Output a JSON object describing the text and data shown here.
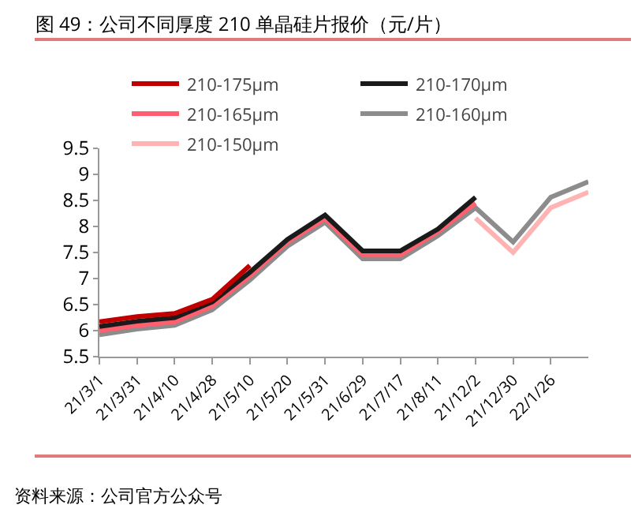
{
  "chart_data": {
    "type": "line",
    "title": "图 49：公司不同厚度 210 单晶硅片报价（元/片）",
    "annotations": [
      "资料来源：公司官方公众号"
    ],
    "categories": [
      "21/3/1",
      "21/3/31",
      "21/4/10",
      "21/4/28",
      "21/5/10",
      "21/5/20",
      "21/5/31",
      "21/6/29",
      "21/7/17",
      "21/8/11",
      "21/12/2",
      "21/12/30",
      "22/1/26",
      null
    ],
    "series": [
      {
        "name": "210-175μm",
        "color": "#c00000",
        "values": [
          6.17,
          6.27,
          6.33,
          6.6,
          7.25,
          null,
          null,
          null,
          null,
          null,
          null,
          null,
          null,
          null
        ]
      },
      {
        "name": "210-170μm",
        "color": "#1a1a1a",
        "values": [
          6.08,
          6.18,
          6.25,
          6.55,
          7.12,
          7.75,
          8.22,
          7.53,
          7.53,
          7.95,
          8.56,
          null,
          null,
          null
        ]
      },
      {
        "name": "210-165μm",
        "color": "#ff5f6e",
        "values": [
          6.0,
          6.1,
          6.17,
          6.47,
          7.05,
          7.7,
          8.15,
          7.45,
          7.45,
          7.9,
          8.45,
          null,
          null,
          null
        ]
      },
      {
        "name": "210-160μm",
        "color": "#8c8c8c",
        "values": [
          5.92,
          6.03,
          6.1,
          6.4,
          6.97,
          7.62,
          8.08,
          7.38,
          7.38,
          7.82,
          8.36,
          7.7,
          8.56,
          8.86
        ]
      },
      {
        "name": "210-150μm",
        "color": "#ffb3b3",
        "values": [
          null,
          null,
          null,
          null,
          null,
          null,
          null,
          null,
          null,
          null,
          8.16,
          7.5,
          8.36,
          8.66
        ]
      }
    ],
    "ylim": [
      5.5,
      9.5
    ],
    "yticks": [
      5.5,
      6,
      6.5,
      7,
      7.5,
      8,
      8.5,
      9,
      9.5
    ],
    "grid": false,
    "legend": "top",
    "marker": "none",
    "line_style": "solid"
  }
}
